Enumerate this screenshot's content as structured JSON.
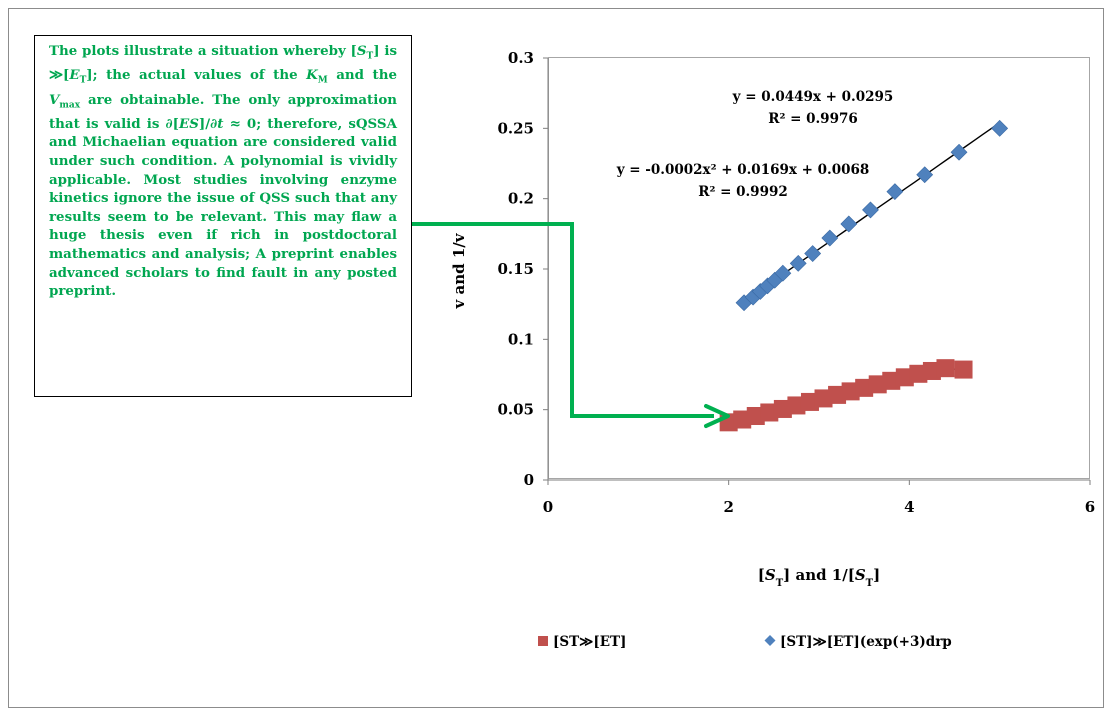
{
  "annotation": {
    "text": "The plots illustrate a situation whereby [ST] is ≫[ET]; the actual values of the KM and the Vmax are obtainable. The only approximation that is valid is ∂[ES]/∂t ≈ 0; therefore, sQSSA and Michaelian equation are considered valid under such condition. A polynomial is vividly applicable. Most studies involving enzyme kinetics ignore the issue of QSS such that any results seem to be relevant. This may flaw a huge thesis even if rich in postdoctoral mathematics and analysis; A preprint enables advanced scholars to find fault in any posted preprint."
  },
  "colors": {
    "annotation_text": "#00a650",
    "arrow": "#00b050",
    "series_red": "#c0504d",
    "series_blue": "#4f81bd"
  },
  "chart_data": {
    "type": "scatter",
    "title": "",
    "xlabel": "[ST] and 1/[ST]",
    "ylabel": "v and 1/v",
    "xlim": [
      0,
      6
    ],
    "ylim": [
      0,
      0.3
    ],
    "x_ticks": [
      "0",
      "2",
      "4",
      "6"
    ],
    "y_ticks": [
      "0",
      "0.05",
      "0.1",
      "0.15",
      "0.2",
      "0.25",
      "0.3"
    ],
    "grid": false,
    "legend_position": "bottom",
    "series": [
      {
        "name": "[ST≫[ET]",
        "marker": "square",
        "color": "#c0504d",
        "x": [
          2.0,
          2.15,
          2.3,
          2.45,
          2.6,
          2.75,
          2.9,
          3.05,
          3.2,
          3.35,
          3.5,
          3.65,
          3.8,
          3.95,
          4.1,
          4.25,
          4.4,
          4.6
        ],
        "y": [
          0.041,
          0.043,
          0.0455,
          0.048,
          0.0505,
          0.053,
          0.0555,
          0.058,
          0.0605,
          0.063,
          0.0655,
          0.068,
          0.0705,
          0.073,
          0.0755,
          0.0775,
          0.0795,
          0.0785
        ],
        "trendline": {
          "kind": "polynomial",
          "coefficients": [
            -0.0002,
            0.0169,
            0.0068
          ],
          "equation": "y = -0.0002x² + 0.0169x + 0.0068",
          "r2": "R² = 0.9992"
        }
      },
      {
        "name": "[ST]≫[ET](exp(+3)drp",
        "marker": "diamond",
        "color": "#4f81bd",
        "x": [
          2.17,
          2.27,
          2.35,
          2.43,
          2.51,
          2.6,
          2.77,
          2.93,
          3.12,
          3.33,
          3.57,
          3.84,
          4.17,
          4.55,
          5.0
        ],
        "y": [
          0.126,
          0.13,
          0.134,
          0.138,
          0.142,
          0.147,
          0.154,
          0.161,
          0.172,
          0.182,
          0.192,
          0.205,
          0.217,
          0.233,
          0.25
        ],
        "trendline": {
          "kind": "linear",
          "coefficients": [
            0.0449,
            0.0295
          ],
          "equation": "y = 0.0449x + 0.0295",
          "r2": "R² = 0.9976"
        }
      }
    ]
  }
}
